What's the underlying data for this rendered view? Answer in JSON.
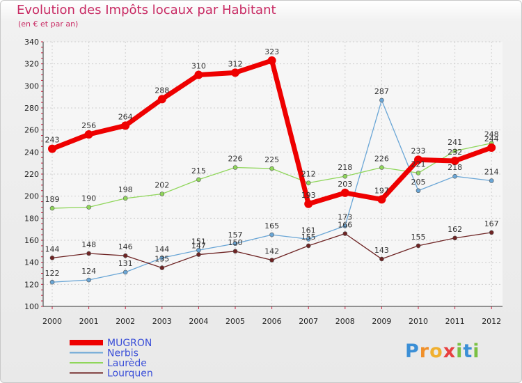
{
  "header": {
    "title": "Evolution des Impôts locaux par Habitant",
    "subtitle": "(en € et par an)"
  },
  "logo": {
    "letters": [
      "P",
      "r",
      "o",
      "x",
      "i",
      "t",
      "i"
    ],
    "colors": [
      "#3b8fd6",
      "#f0902a",
      "#f0b030",
      "#e84040",
      "#7ac043",
      "#3b8fd6",
      "#7ac043"
    ]
  },
  "chart_data": {
    "type": "line",
    "title": "Evolution des Impôts locaux par Habitant",
    "ylabel": "(en € et par an)",
    "xlabel": "",
    "ylim": [
      100,
      340
    ],
    "yticks": [
      100,
      120,
      140,
      160,
      180,
      200,
      220,
      240,
      260,
      280,
      300,
      320,
      340
    ],
    "categories": [
      "2000",
      "2001",
      "2002",
      "2003",
      "2004",
      "2005",
      "2006",
      "2007",
      "2008",
      "2009",
      "2010",
      "2011",
      "2012"
    ],
    "grid": true,
    "legend_position": "bottom-left",
    "series": [
      {
        "name": "MUGRON",
        "color": "#ee0000",
        "values": [
          243,
          256,
          264,
          288,
          310,
          312,
          323,
          193,
          203,
          197,
          233,
          232,
          244
        ]
      },
      {
        "name": "Nerbis",
        "color": "#6aa6d6",
        "values": [
          122,
          124,
          131,
          144,
          151,
          157,
          165,
          161,
          173,
          287,
          205,
          218,
          214
        ]
      },
      {
        "name": "Laurède",
        "color": "#8fd65a",
        "values": [
          189,
          190,
          198,
          202,
          215,
          226,
          225,
          212,
          218,
          226,
          221,
          241,
          248
        ]
      },
      {
        "name": "Lourquen",
        "color": "#6e2424",
        "values": [
          144,
          148,
          146,
          135,
          147,
          150,
          142,
          155,
          166,
          143,
          155,
          162,
          167
        ]
      }
    ]
  }
}
